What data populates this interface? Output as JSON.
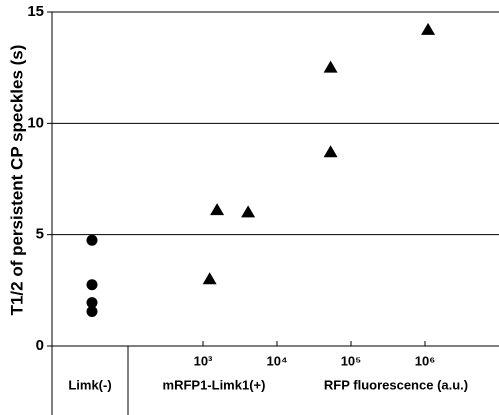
{
  "chart_data": {
    "type": "scatter",
    "y_label": "T1/2 of persistent CP speckles (s)",
    "x_label": "RFP fluorescence (a.u.)",
    "ylim": [
      0,
      15
    ],
    "yticks": [
      0,
      5,
      10,
      15
    ],
    "grid": true,
    "xscale": "log",
    "xlim": [
      100,
      10000000
    ],
    "xticks": [
      {
        "value": 1000,
        "label": "10³"
      },
      {
        "value": 10000,
        "label": "10⁴"
      },
      {
        "value": 100000,
        "label": "10⁵"
      },
      {
        "value": 1000000,
        "label": "10⁶"
      }
    ],
    "series": [
      {
        "name": "Limk(-)",
        "color": "#000000",
        "marker": "circle",
        "values": [
          4.75,
          2.75,
          1.95,
          1.55
        ]
      },
      {
        "name": "mRFP1-Limk1(+)",
        "color": "#000000",
        "marker": "triangle",
        "x": [
          1230,
          1550,
          4070,
          53000,
          53000,
          1100000
        ],
        "values": [
          3.0,
          6.1,
          6.0,
          8.7,
          12.5,
          14.2
        ]
      }
    ]
  }
}
